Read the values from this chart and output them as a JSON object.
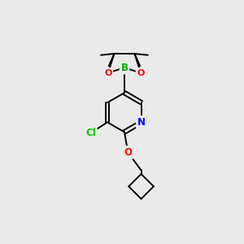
{
  "bg_color": "#eaeaea",
  "bond_color": "#000000",
  "atom_colors": {
    "B": "#00aa00",
    "O": "#ff0000",
    "N": "#0000ff",
    "Cl": "#00cc00",
    "C": "#000000"
  },
  "figsize": [
    3.0,
    3.0
  ],
  "dpi": 100,
  "lw": 1.4
}
